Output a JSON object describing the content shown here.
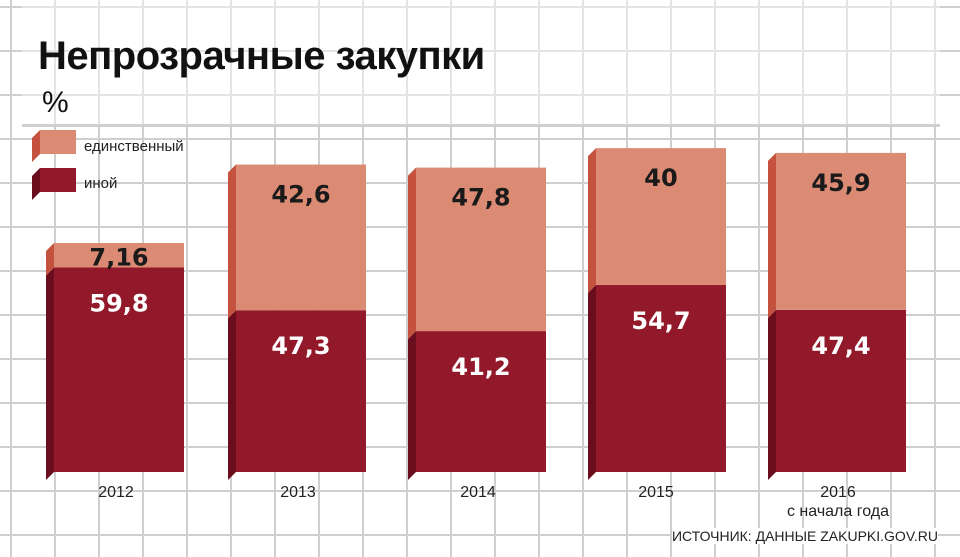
{
  "header": {
    "title": "Непрозрачные закупки",
    "unit": "%"
  },
  "legend": [
    {
      "label": "единственный"
    },
    {
      "label": "иной"
    }
  ],
  "source": "ИСТОЧНИК: ДАННЫЕ ZAKUPKI.GOV.RU",
  "colors": {
    "single_front": "#db8b74",
    "single_side": "#c5523f",
    "other_front": "#92192a",
    "other_side": "#6a0d1c",
    "grid": "#cfcfcf"
  },
  "chart_data": {
    "type": "bar",
    "stacked": true,
    "categories": [
      "2012",
      "2013",
      "2014",
      "2015",
      "2016"
    ],
    "category_notes": [
      "",
      "",
      "",
      "",
      "с начала года"
    ],
    "series": [
      {
        "name": "иной",
        "values": [
          59.8,
          47.3,
          41.2,
          54.7,
          47.4
        ],
        "labels": [
          "59,8",
          "47,3",
          "41,2",
          "54,7",
          "47,4"
        ]
      },
      {
        "name": "единственный",
        "values": [
          7.16,
          42.6,
          47.8,
          40,
          45.9
        ],
        "labels": [
          "7,16",
          "42,6",
          "47,8",
          "40",
          "45,9"
        ]
      }
    ],
    "ylim": [
      0,
      100
    ],
    "legend_position": "top-left",
    "grid": true
  }
}
